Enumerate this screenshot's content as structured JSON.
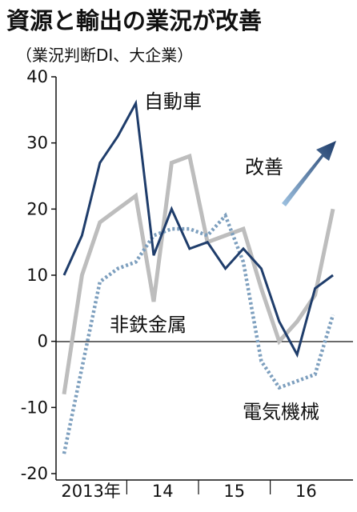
{
  "title": "資源と輸出の業況が改善",
  "subtitle": "（業況判断DI、大企業）",
  "annotation": "改善",
  "colors": {
    "auto": "#1f3d6b",
    "nonferrous": "#bdbdbd",
    "electrical": "#7d9fbe",
    "axis": "#111111",
    "arrow_dark": "#1f3d6b",
    "arrow_light": "#9fc3e2"
  },
  "chart_data": {
    "type": "line",
    "ylim": [
      -20,
      40
    ],
    "y_ticks": [
      "40",
      "30",
      "20",
      "10",
      "0",
      "-10",
      "-20"
    ],
    "y_tick_values": [
      40,
      30,
      20,
      10,
      0,
      -10,
      -20
    ],
    "x_tick_labels": [
      "2013年",
      "14",
      "15",
      "16"
    ],
    "x_periods": [
      "2013Q1",
      "2013Q2",
      "2013Q3",
      "2013Q4",
      "2014Q1",
      "2014Q2",
      "2014Q3",
      "2014Q4",
      "2015Q1",
      "2015Q2",
      "2015Q3",
      "2015Q4",
      "2016Q1",
      "2016Q2",
      "2016Q3",
      "2016Q4"
    ],
    "series": [
      {
        "name": "自動車",
        "style": "solid-dark",
        "values": [
          10,
          16,
          27,
          31,
          36,
          13,
          20,
          14,
          15,
          11,
          14,
          11,
          3,
          -2,
          8,
          10
        ]
      },
      {
        "name": "非鉄金属",
        "style": "solid-gray",
        "values": [
          -8,
          10,
          18,
          20,
          22,
          6,
          27,
          28,
          15,
          16,
          17,
          8,
          0,
          3,
          7,
          20
        ]
      },
      {
        "name": "電気機械",
        "style": "dotted",
        "values": [
          -17,
          -4,
          9,
          11,
          12,
          16,
          17,
          17,
          16,
          19,
          12,
          -3,
          -7,
          -6,
          -5,
          4
        ]
      }
    ]
  }
}
